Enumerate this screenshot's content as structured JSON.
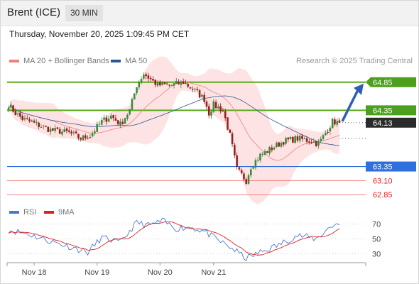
{
  "header": {
    "title": "Brent (ICE)",
    "timeframe": "30 MIN"
  },
  "datetime": "Thursday, November 20, 2025 1:09:45 PM CET",
  "legend": {
    "bollinger": {
      "label": "MA 20 + Bollinger Bands",
      "color": "#f08080"
    },
    "ma50": {
      "label": "MA 50",
      "color": "#2f5597"
    }
  },
  "credit": "Research © 2025 Trading Central",
  "rsi_legend": {
    "rsi": {
      "label": "RSI",
      "color": "#4a78d0"
    },
    "ma9": {
      "label": "9MA",
      "color": "#e02020"
    }
  },
  "chart_data": [
    {
      "type": "line",
      "subtype": "candlestick",
      "ylim": [
        62.7,
        65.1
      ],
      "x_ticks": [
        "Nov 18",
        "Nov 19",
        "Nov 20",
        "Nov 21"
      ],
      "last_price": 64.13,
      "levels": [
        {
          "value": 64.85,
          "label": "64.85",
          "kind": "resistance"
        },
        {
          "value": 64.35,
          "label": "64.35",
          "kind": "resistance"
        },
        {
          "value": 63.35,
          "label": "63.35",
          "kind": "pivot"
        },
        {
          "value": 63.1,
          "label": "63.10",
          "kind": "support"
        },
        {
          "value": 62.85,
          "label": "62.85",
          "kind": "support"
        }
      ],
      "target_arrow": {
        "from": 64.13,
        "to": 64.85
      },
      "anchors": [
        [
          0,
          64.45
        ],
        [
          3,
          64.3
        ],
        [
          6,
          64.2
        ],
        [
          12,
          64.1
        ],
        [
          18,
          64.0
        ],
        [
          26,
          63.95
        ],
        [
          31,
          63.85
        ],
        [
          35,
          63.9
        ],
        [
          40,
          64.15
        ],
        [
          44,
          64.25
        ],
        [
          48,
          64.1
        ],
        [
          52,
          64.35
        ],
        [
          55,
          64.8
        ],
        [
          58,
          65.0
        ],
        [
          61,
          64.9
        ],
        [
          64,
          64.8
        ],
        [
          70,
          64.8
        ],
        [
          75,
          64.85
        ],
        [
          80,
          64.7
        ],
        [
          84,
          64.55
        ],
        [
          86,
          64.3
        ],
        [
          88,
          64.45
        ],
        [
          92,
          64.35
        ],
        [
          95,
          63.9
        ],
        [
          98,
          63.3
        ],
        [
          102,
          63.1
        ],
        [
          104,
          63.35
        ],
        [
          108,
          63.55
        ],
        [
          112,
          63.65
        ],
        [
          118,
          63.8
        ],
        [
          124,
          63.85
        ],
        [
          130,
          63.8
        ],
        [
          133,
          63.75
        ],
        [
          136,
          63.95
        ],
        [
          139,
          64.15
        ],
        [
          142,
          64.13
        ]
      ],
      "series": [
        {
          "name": "MA 20 + Bollinger Bands"
        },
        {
          "name": "MA 50"
        }
      ]
    },
    {
      "type": "line",
      "ylim": [
        20,
        80
      ],
      "y_ticks": [
        70,
        50,
        30
      ],
      "series": [
        {
          "name": "RSI",
          "anchors": [
            [
              0,
              62
            ],
            [
              8,
              57
            ],
            [
              18,
              47
            ],
            [
              28,
              38
            ],
            [
              34,
              32
            ],
            [
              40,
              52
            ],
            [
              48,
              45
            ],
            [
              55,
              72
            ],
            [
              60,
              68
            ],
            [
              66,
              74
            ],
            [
              72,
              64
            ],
            [
              78,
              66
            ],
            [
              84,
              60
            ],
            [
              90,
              48
            ],
            [
              96,
              37
            ],
            [
              102,
              24
            ],
            [
              108,
              32
            ],
            [
              116,
              42
            ],
            [
              124,
              55
            ],
            [
              132,
              50
            ],
            [
              138,
              66
            ],
            [
              142,
              72
            ]
          ]
        },
        {
          "name": "9MA"
        }
      ]
    }
  ]
}
